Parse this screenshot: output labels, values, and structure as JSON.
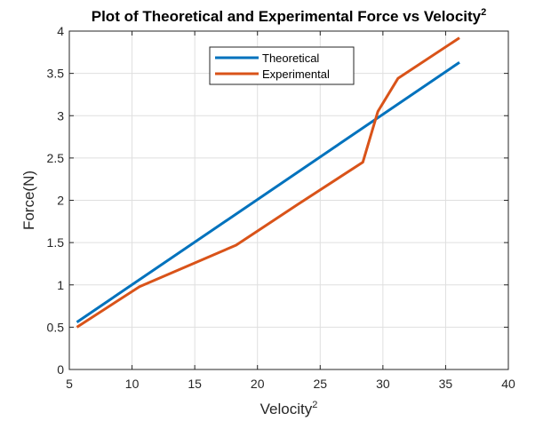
{
  "chart_data": {
    "type": "line",
    "title": "Plot of Theoretical and Experimental Force vs Velocity",
    "title_superscript": "2",
    "xlabel": "Velocity",
    "xlabel_superscript": "2",
    "ylabel": "Force(N)",
    "xlim": [
      5,
      40
    ],
    "ylim": [
      0,
      4
    ],
    "xticks": [
      "5",
      "10",
      "15",
      "20",
      "25",
      "30",
      "35",
      "40"
    ],
    "yticks": [
      "0",
      "0.5",
      "1",
      "1.5",
      "2",
      "2.5",
      "3",
      "3.5",
      "4"
    ],
    "grid": true,
    "legend_position": "top-center",
    "series": [
      {
        "name": "Theoretical",
        "color": "#0072bd",
        "x": [
          5.6,
          36.1
        ],
        "y": [
          0.56,
          3.63
        ]
      },
      {
        "name": "Experimental",
        "color": "#d95319",
        "x": [
          5.6,
          10.6,
          18.3,
          23.2,
          28.4,
          29.6,
          31.2,
          36.1
        ],
        "y": [
          0.5,
          0.98,
          1.47,
          1.95,
          2.45,
          3.05,
          3.44,
          3.92
        ]
      }
    ]
  }
}
